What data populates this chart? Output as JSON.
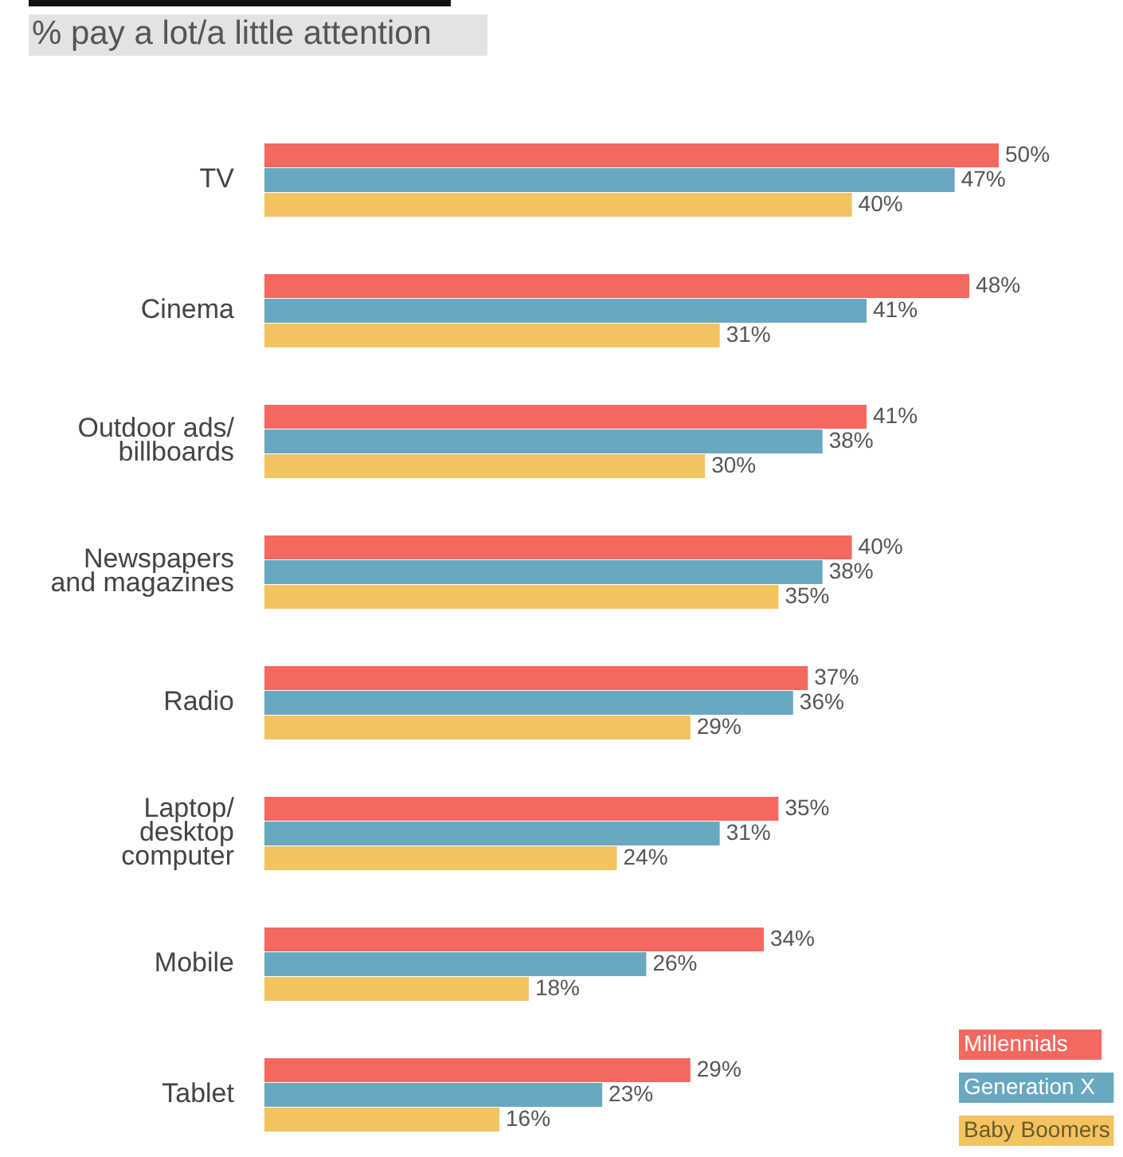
{
  "chart_data": {
    "type": "bar",
    "orientation": "horizontal",
    "subtitle": "% pay a lot/a little attention",
    "categories": [
      "TV",
      "Cinema",
      "Outdoor ads/ billboards",
      "Newspapers and magazines",
      "Radio",
      "Laptop/ desktop computer",
      "Mobile",
      "Tablet"
    ],
    "series": [
      {
        "name": "Millennials",
        "color": "#f4685f",
        "values": [
          50,
          48,
          41,
          40,
          37,
          35,
          34,
          29
        ],
        "value_labels": [
          "50%",
          "48%",
          "41%",
          "40%",
          "37%",
          "35%",
          "34%",
          "29%"
        ]
      },
      {
        "name": "Generation X",
        "color": "#6aa7c0",
        "values": [
          47,
          41,
          38,
          38,
          36,
          31,
          26,
          23
        ],
        "value_labels": [
          "47%",
          "41%",
          "38%",
          "38%",
          "36%",
          "31%",
          "26%",
          "23%"
        ]
      },
      {
        "name": "Baby Boomers",
        "color": "#f2c35e",
        "values": [
          40,
          31,
          30,
          35,
          29,
          24,
          18,
          16
        ],
        "value_labels": [
          "40%",
          "31%",
          "30%",
          "35%",
          "29%",
          "24%",
          "18%",
          "16%"
        ]
      }
    ],
    "legend": "bottom right"
  }
}
